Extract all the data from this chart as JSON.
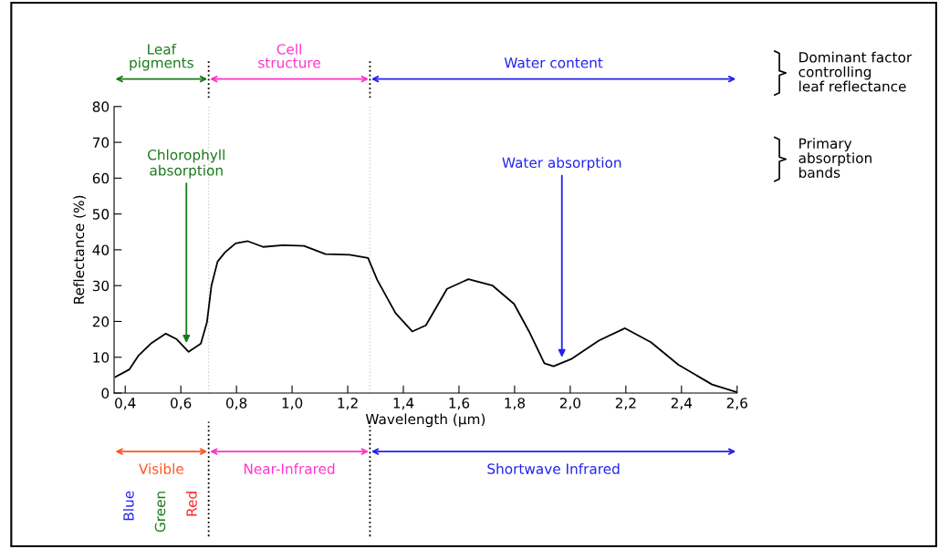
{
  "chart_data": {
    "type": "line",
    "xlabel": "Wavelength (µm)",
    "ylabel": "Reflectance (%)",
    "series": [
      {
        "color": "#000000",
        "x": [
          0.365,
          0.415,
          0.447,
          0.492,
          0.546,
          0.584,
          0.628,
          0.672,
          0.694,
          0.71,
          0.732,
          0.759,
          0.797,
          0.841,
          0.896,
          0.967,
          1.043,
          1.12,
          1.207,
          1.273,
          1.306,
          1.372,
          1.432,
          1.481,
          1.557,
          1.634,
          1.721,
          1.798,
          1.852,
          1.907,
          1.94,
          2.006,
          2.104,
          2.197,
          2.29,
          2.389,
          2.51,
          2.597
        ],
        "values": [
          4.5,
          6.6,
          10.4,
          13.8,
          16.6,
          15.1,
          11.5,
          13.8,
          19.8,
          30,
          36.7,
          39.3,
          41.8,
          42.4,
          40.8,
          41.3,
          41.1,
          38.8,
          38.6,
          37.7,
          31.6,
          22.3,
          17.2,
          18.9,
          29.1,
          31.8,
          30,
          24.9,
          17.2,
          8.3,
          7.5,
          9.6,
          14.7,
          18.1,
          14.2,
          7.9,
          2.4,
          0.3
        ]
      }
    ],
    "xlim": [
      0.36,
      2.6
    ],
    "ylim": [
      0,
      80
    ],
    "xticks": [
      {
        "value": 0.4,
        "label": "0,4"
      },
      {
        "value": 0.6,
        "label": "0,6"
      },
      {
        "value": 0.8,
        "label": "0,8"
      },
      {
        "value": 1.0,
        "label": "1,0"
      },
      {
        "value": 1.2,
        "label": "1,2"
      },
      {
        "value": 1.4,
        "label": "1,4"
      },
      {
        "value": 1.6,
        "label": "1,6"
      },
      {
        "value": 1.8,
        "label": "1,8"
      },
      {
        "value": 2.0,
        "label": "2,0"
      },
      {
        "value": 2.2,
        "label": "2,2"
      },
      {
        "value": 2.4,
        "label": "2,4"
      },
      {
        "value": 2.6,
        "label": "2,6"
      }
    ],
    "yticks": [
      0,
      10,
      20,
      30,
      40,
      50,
      60,
      70,
      80
    ],
    "grid": false,
    "marker": "none",
    "line_style": "solid",
    "ref_lines": [
      {
        "axis": "x",
        "value": 0.7,
        "line_style": "dotted"
      },
      {
        "axis": "x",
        "value": 1.28,
        "line_style": "dotted"
      }
    ],
    "annotations": [
      {
        "text": "Chlorophyll\nabsorption",
        "x": 0.62,
        "y": 14
      },
      {
        "text": "Water absorption",
        "x": 1.97,
        "y": 10
      },
      "Leaf\npigments",
      "Cell\nstructure",
      "Water content",
      "Dominant factor\ncontrolling\nleaf reflectance",
      "Primary\nabsorption\nbands",
      "Visible",
      "Near-Infrared",
      "Shortwave Infrared",
      "Blue",
      "Green",
      "Red"
    ]
  }
}
